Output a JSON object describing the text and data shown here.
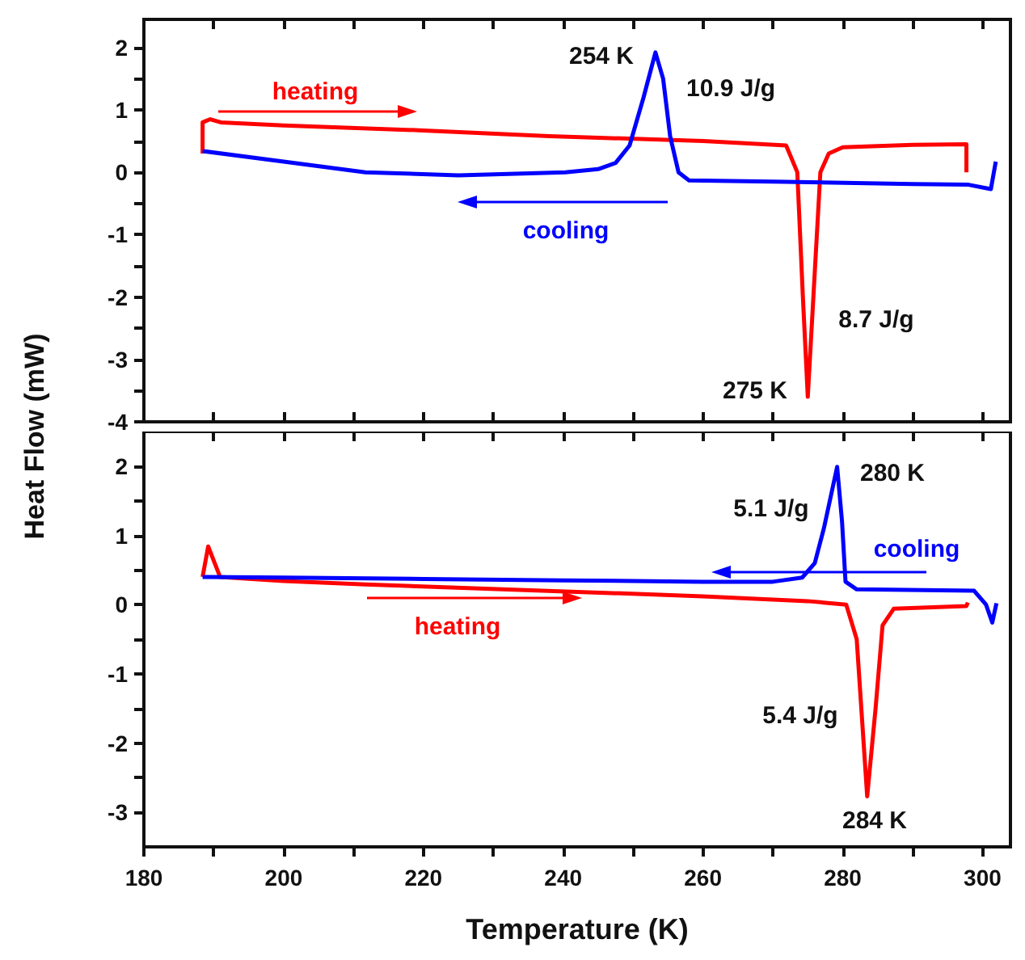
{
  "chart_data": [
    {
      "type": "line",
      "ylabel": "Heat Flow (mW)",
      "xlim": [
        180,
        304
      ],
      "xticks": [
        180,
        200,
        220,
        240,
        260,
        280,
        300
      ],
      "ylim": [
        -4,
        2.45
      ],
      "yticks": [
        -4,
        -3,
        -2,
        -1,
        0,
        1,
        2
      ],
      "tick_labels": "y",
      "grid": false,
      "series": [
        {
          "color": "#ff0000",
          "x": [
            188.4,
            188.4,
            189.5,
            191,
            200,
            220,
            238,
            260,
            271.9,
            273.5,
            274.3,
            275,
            275.8,
            276.8,
            278,
            280,
            290,
            297.7,
            297.7
          ],
          "values": [
            0.3,
            0.8,
            0.85,
            0.8,
            0.75,
            0.67,
            0.58,
            0.5,
            0.43,
            0,
            -2,
            -3.6,
            -2,
            0,
            0.3,
            0.4,
            0.44,
            0.45,
            0
          ]
        },
        {
          "color": "#0000ff",
          "x": [
            188.4,
            200,
            211.7,
            225,
            240.3,
            245,
            247.5,
            249.5,
            251.5,
            253.2,
            254.3,
            255.3,
            256.5,
            258,
            270,
            290,
            298,
            301.2,
            301.9
          ],
          "values": [
            0.34,
            0.17,
            0,
            -0.05,
            0,
            0.05,
            0.15,
            0.43,
            1.2,
            1.92,
            1.5,
            0.58,
            0,
            -0.13,
            -0.15,
            -0.19,
            -0.2,
            -0.27,
            0.17
          ]
        }
      ],
      "annotations": [
        "heating",
        "cooling",
        "254 K",
        "10.9 J/g",
        "8.7 J/g",
        "275 K"
      ]
    },
    {
      "type": "line",
      "xlabel": "Temperature (K)",
      "xlim": [
        180,
        304
      ],
      "xticks": [
        180,
        200,
        220,
        240,
        260,
        280,
        300
      ],
      "ylim": [
        -3.5,
        2.5
      ],
      "yticks": [
        -3,
        -2,
        -1,
        0,
        1,
        2
      ],
      "grid": false,
      "series": [
        {
          "color": "#ff0000",
          "x": [
            188.4,
            189.2,
            190.9,
            200,
            211.7,
            240.3,
            260,
            275,
            280.5,
            282,
            283.5,
            284.7,
            285.7,
            287.3,
            297.7,
            297.9
          ],
          "values": [
            0.4,
            0.84,
            0.4,
            0.34,
            0.29,
            0.19,
            0.12,
            0.05,
            0,
            -0.5,
            -2.77,
            -1.5,
            -0.3,
            -0.06,
            -0.02,
            0.03
          ]
        },
        {
          "color": "#0000ff",
          "x": [
            188.4,
            200,
            220,
            240,
            260,
            270,
            274.2,
            276,
            277.3,
            279.2,
            279.9,
            280.4,
            282,
            298.8,
            300.5,
            301.4,
            302
          ],
          "values": [
            0.4,
            0.39,
            0.37,
            0.35,
            0.33,
            0.33,
            0.39,
            0.6,
            1.1,
            1.99,
            1.2,
            0.33,
            0.22,
            0.2,
            0,
            -0.26,
            0.02
          ]
        }
      ],
      "annotations": [
        "heating",
        "cooling",
        "280 K",
        "5.1 J/g",
        "5.4 J/g",
        "284 K"
      ]
    }
  ]
}
